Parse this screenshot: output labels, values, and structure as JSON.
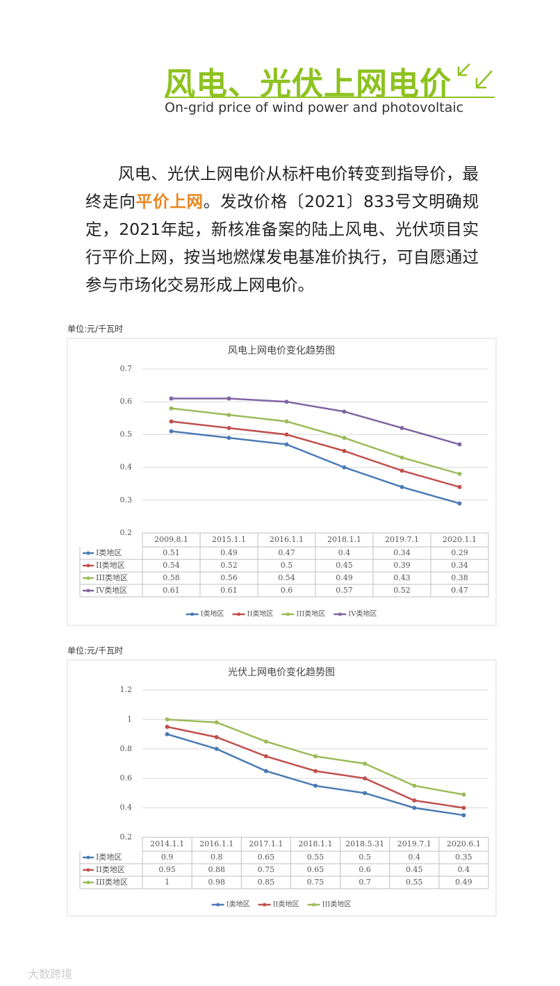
{
  "header": {
    "title": "风电、光伏上网电价",
    "subtitle": "On-grid price of wind power and photovoltaic"
  },
  "paragraph": {
    "parts": [
      "风电、光伏上网电价从标杆电价转变到指导价，最终走向",
      "平价上网",
      "。发改价格〔2021〕833号文明确规定，2021年起，新核准备案的陆上风电、光伏项目实行平价上网，按当地燃煤发电基准价执行，可自愿通过参与市场化交易形成上网电价。"
    ]
  },
  "watermark": "大数跨境",
  "chart_data": [
    {
      "type": "line",
      "unit": "单位:元/千瓦时",
      "title": "风电上网电价变化趋势图",
      "categories": [
        "2009.8.1",
        "2015.1.1",
        "2016.1.1",
        "2018.1.1",
        "2019.7.1",
        "2020.1.1"
      ],
      "series": [
        {
          "name": "I类地区",
          "color": "#4a7ab5",
          "values": [
            0.51,
            0.49,
            0.47,
            0.4,
            0.34,
            0.29
          ]
        },
        {
          "name": "II类地区",
          "color": "#c0504d",
          "values": [
            0.54,
            0.52,
            0.5,
            0.45,
            0.39,
            0.34
          ]
        },
        {
          "name": "III类地区",
          "color": "#9bbb59",
          "values": [
            0.58,
            0.56,
            0.54,
            0.49,
            0.43,
            0.38
          ]
        },
        {
          "name": "IV类地区",
          "color": "#8064a2",
          "values": [
            0.61,
            0.61,
            0.6,
            0.57,
            0.52,
            0.47
          ]
        }
      ],
      "ylim": [
        0.2,
        0.7
      ],
      "yticks": [
        0.2,
        0.3,
        0.4,
        0.5,
        0.6,
        0.7
      ],
      "grid": true,
      "legend": "bottom"
    },
    {
      "type": "line",
      "unit": "单位:元/千瓦时",
      "title": "光伏上网电价变化趋势图",
      "categories": [
        "2014.1.1",
        "2016.1.1",
        "2017.1.1",
        "2018.1.1",
        "2018.5.31",
        "2019.7.1",
        "2020.6.1"
      ],
      "series": [
        {
          "name": "I类地区",
          "color": "#4a7ab5",
          "values": [
            0.9,
            0.8,
            0.65,
            0.55,
            0.5,
            0.4,
            0.35
          ]
        },
        {
          "name": "II类地区",
          "color": "#c0504d",
          "values": [
            0.95,
            0.88,
            0.75,
            0.65,
            0.6,
            0.45,
            0.4
          ]
        },
        {
          "name": "III类地区",
          "color": "#9bbb59",
          "values": [
            1,
            0.98,
            0.85,
            0.75,
            0.7,
            0.55,
            0.49
          ]
        }
      ],
      "ylim": [
        0.2,
        1.2
      ],
      "yticks": [
        0.2,
        0.4,
        0.6,
        0.8,
        1,
        1.2
      ],
      "grid": true,
      "legend": "bottom"
    }
  ]
}
